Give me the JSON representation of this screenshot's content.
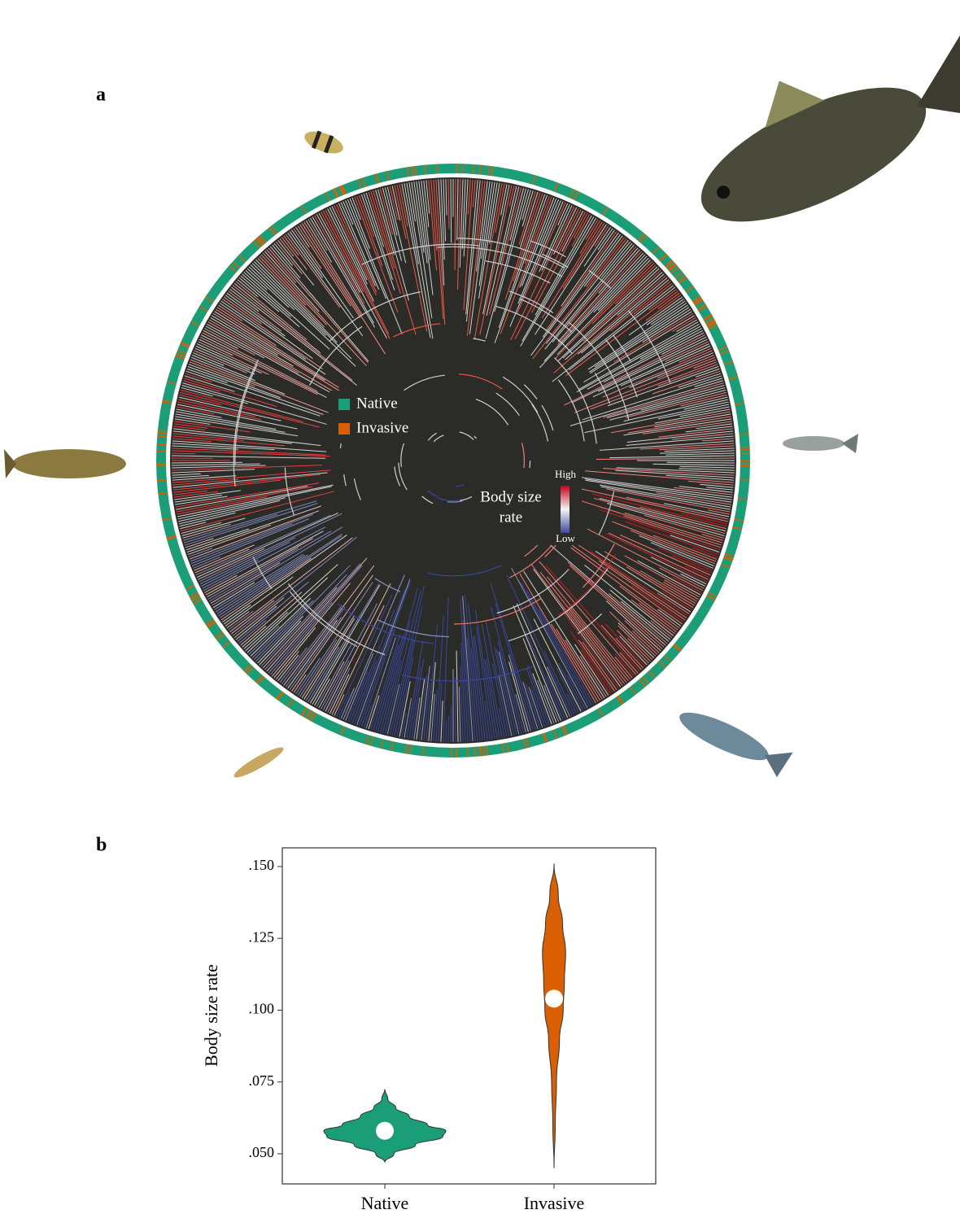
{
  "tree": {
    "panel_label": "a",
    "legend": [
      {
        "name": "Native",
        "color": "#1b9e77"
      },
      {
        "name": "Invasive",
        "color": "#d95f02"
      }
    ],
    "colorbar": {
      "title": [
        "Body size",
        "rate"
      ],
      "high": "High",
      "low": "Low"
    }
  },
  "chart_data": {
    "type": "violin",
    "panel_label": "b",
    "ylabel": "Body size rate",
    "categories": [
      "Native",
      "Invasive"
    ],
    "series": [
      {
        "color": "#1b9e77",
        "median": 0.058,
        "y": [
          0.047,
          0.05,
          0.053,
          0.056,
          0.058,
          0.06,
          0.063,
          0.066,
          0.069,
          0.0725
        ],
        "density": [
          0,
          0.15,
          0.5,
          0.95,
          1.0,
          0.7,
          0.4,
          0.18,
          0.05,
          0
        ]
      },
      {
        "color": "#d95f02",
        "median": 0.104,
        "y": [
          0.045,
          0.06,
          0.075,
          0.09,
          0.1,
          0.11,
          0.12,
          0.13,
          0.14,
          0.151
        ],
        "density": [
          0,
          0.02,
          0.04,
          0.09,
          0.15,
          0.17,
          0.19,
          0.14,
          0.07,
          0
        ]
      }
    ],
    "ylim": [
      0.0395,
      0.1565
    ],
    "yticks": [
      {
        "value": 0.05,
        "label": ".050"
      },
      {
        "value": 0.075,
        "label": ".075"
      },
      {
        "value": 0.1,
        "label": ".100"
      },
      {
        "value": 0.125,
        "label": ".125"
      },
      {
        "value": 0.15,
        "label": ".150"
      }
    ]
  }
}
